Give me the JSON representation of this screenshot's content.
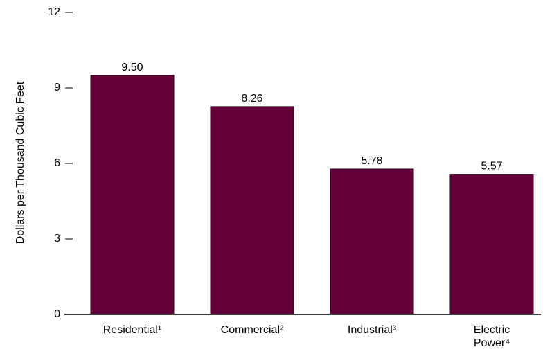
{
  "chart_data": {
    "type": "bar",
    "categories": [
      "Residential¹",
      "Commercial²",
      "Industrial³",
      "Electric Power⁴"
    ],
    "category_lines": [
      [
        "Residential¹"
      ],
      [
        "Commercial²"
      ],
      [
        "Industrial³"
      ],
      [
        "Electric",
        "Power⁴"
      ]
    ],
    "values": [
      9.5,
      8.26,
      5.78,
      5.57
    ],
    "value_labels": [
      "9.50",
      "8.26",
      "5.78",
      "5.57"
    ],
    "title": "",
    "xlabel": "",
    "ylabel": "Dollars per Thousand Cubic Feet",
    "ylim": [
      0,
      12
    ],
    "yticks": [
      0,
      3,
      6,
      9,
      12
    ],
    "ytick_labels": [
      "0",
      "3",
      "6",
      "9",
      "12"
    ],
    "grid": false,
    "colors": {
      "bar": "#630039",
      "bar_stroke": "#2a0018",
      "axis": "#000000"
    }
  }
}
